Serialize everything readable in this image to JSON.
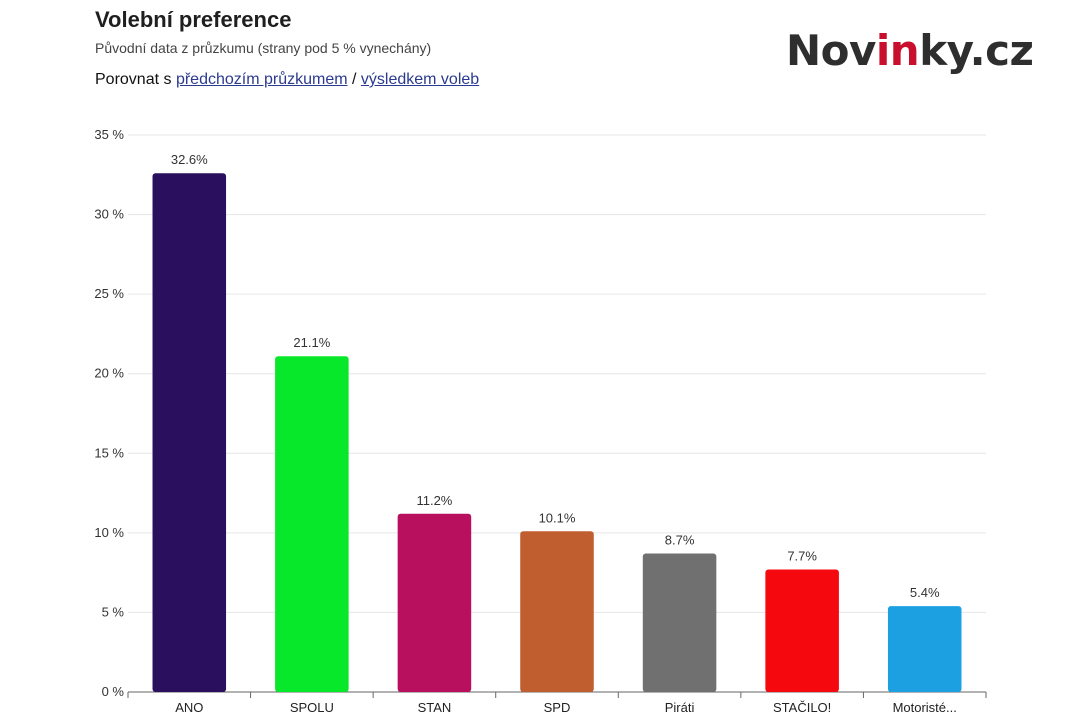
{
  "header": {
    "title": "Volební preference",
    "subtitle": "Původní data z průzkumu (strany pod 5 % vynechány)",
    "compare_prefix": "Porovnat s ",
    "compare_link_previous": "předchozím průzkumem",
    "compare_separator": " / ",
    "compare_link_election": "výsledkem voleb"
  },
  "logo": {
    "part1": "Nov",
    "part2": "in",
    "part3": "ky.cz",
    "text_color": "#2e2e2e",
    "accent_color": "#c8102e"
  },
  "chart_data": {
    "type": "bar",
    "categories": [
      "ANO",
      "SPOLU",
      "STAN",
      "SPD",
      "Piráti",
      "STAČILO!",
      "Motoristé..."
    ],
    "values": [
      32.6,
      21.1,
      11.2,
      10.1,
      8.7,
      7.7,
      5.4
    ],
    "value_labels": [
      "32.6%",
      "21.1%",
      "11.2%",
      "10.1%",
      "8.7%",
      "7.7%",
      "5.4%"
    ],
    "colors": [
      "#2a0f5e",
      "#08e82b",
      "#b8105e",
      "#c05e30",
      "#707070",
      "#f5090f",
      "#1ca0e2"
    ],
    "ylim": [
      0,
      35
    ],
    "yticks": [
      0,
      5,
      10,
      15,
      20,
      25,
      30,
      35
    ],
    "ytick_labels": [
      "0 %",
      "5 %",
      "10 %",
      "15 %",
      "20 %",
      "25 %",
      "30 %",
      "35 %"
    ],
    "grid": true,
    "legend": "none"
  }
}
